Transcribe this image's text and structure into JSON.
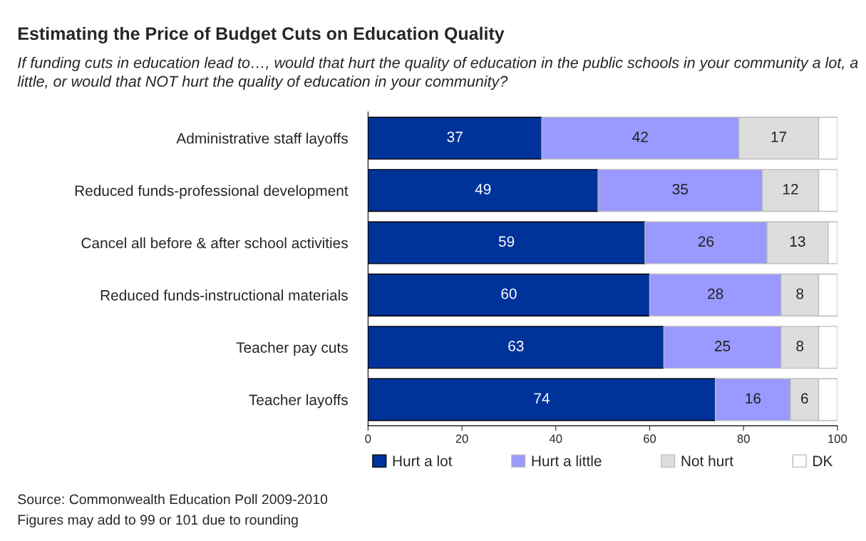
{
  "chart_data": {
    "type": "bar",
    "orientation": "horizontal",
    "stacked": true,
    "title": "Estimating the Price of Budget Cuts on Education Quality",
    "subtitle": "If funding cuts in education lead to…, would that hurt the quality of education in the public schools in your community a lot, a little, or would that NOT hurt the quality of education in your community?",
    "categories": [
      "Administrative staff layoffs",
      "Reduced funds-professional development",
      "Cancel all before & after school activities",
      "Reduced funds-instructional materials",
      "Teacher pay cuts",
      "Teacher layoffs"
    ],
    "series": [
      {
        "name": "Hurt a lot",
        "color": "#003399",
        "values": [
          37,
          49,
          59,
          60,
          63,
          74
        ],
        "value_labels": [
          "37",
          "49",
          "59",
          "60",
          "63",
          "74"
        ]
      },
      {
        "name": "Hurt a little",
        "color": "#9999ff",
        "values": [
          42,
          35,
          26,
          28,
          25,
          16
        ],
        "value_labels": [
          "42",
          "35",
          "26",
          "28",
          "25",
          "16"
        ]
      },
      {
        "name": "Not hurt",
        "color": "#dddddd",
        "values": [
          17,
          12,
          13,
          8,
          8,
          6
        ],
        "value_labels": [
          "17",
          "12",
          "13",
          "8",
          "8",
          "6"
        ]
      },
      {
        "name": "DK",
        "color": "#ffffff",
        "values": [
          4,
          4,
          2,
          4,
          4,
          4
        ],
        "value_labels": [
          null,
          null,
          null,
          null,
          null,
          null
        ]
      }
    ],
    "xlim": [
      0,
      100
    ],
    "xticks": [
      0,
      20,
      40,
      60,
      80,
      100
    ],
    "grid": false,
    "legend": "bottom",
    "annotations": [
      "Source: Commonwealth Education Poll 2009-2010",
      "Figures may add to 99 or 101 due to rounding"
    ]
  }
}
